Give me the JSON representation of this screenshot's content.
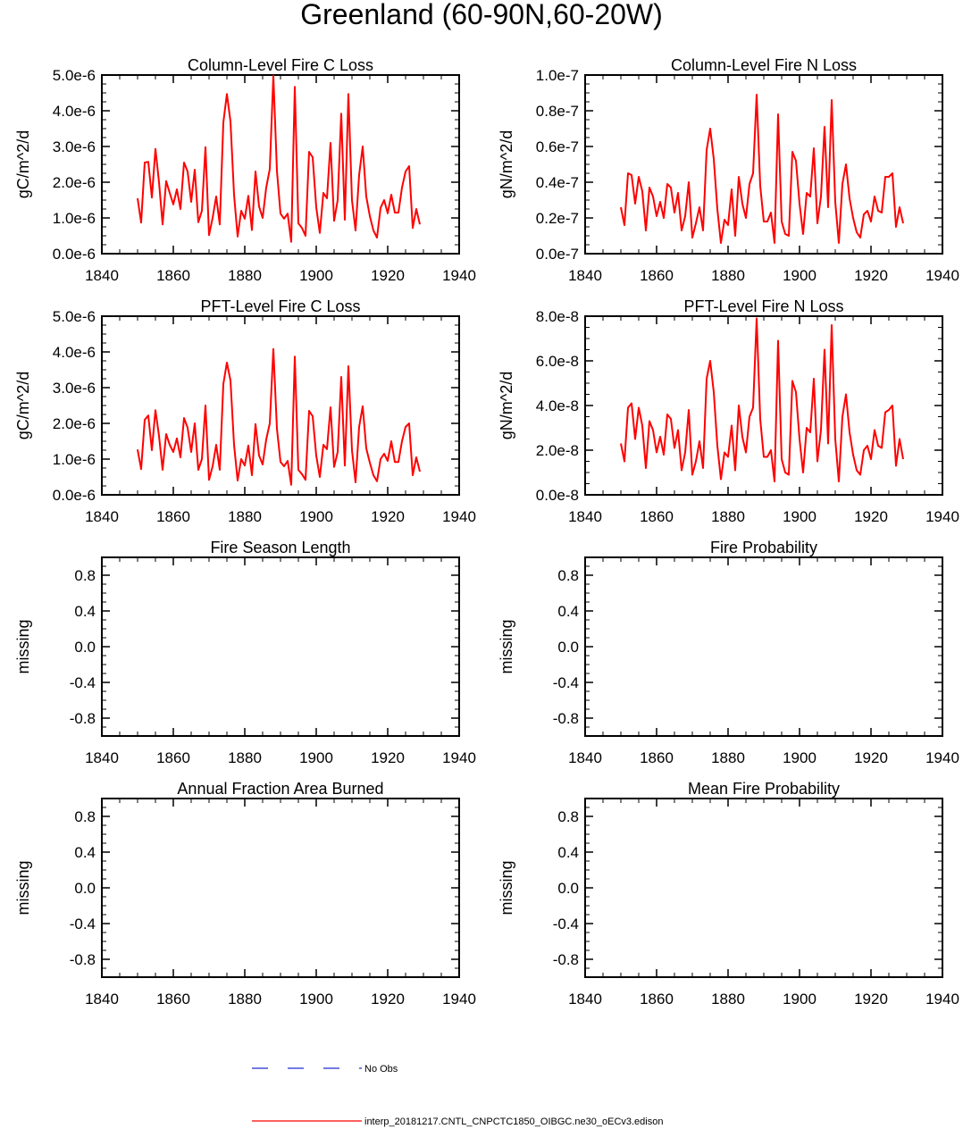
{
  "figure": {
    "title": "Greenland (60-90N,60-20W)"
  },
  "legend": {
    "entries": [
      {
        "label": "No Obs",
        "color": "#1f2ccf",
        "style": "dashed"
      },
      {
        "label": "interp_20181217.CNTL_CNPCTC1850_OIBGC.ne30_oECv3.edison",
        "color": "#ff0000",
        "style": "solid"
      }
    ]
  },
  "chart_data": [
    {
      "type": "line",
      "title": "Column-Level Fire C Loss",
      "ylabel": "gC/m^2/d",
      "xlim": [
        1840,
        1940
      ],
      "xticks": [
        1840,
        1860,
        1880,
        1900,
        1920,
        1940
      ],
      "ylim": [
        0,
        5e-06
      ],
      "yticks": [
        0,
        1e-06,
        2e-06,
        3e-06,
        4e-06,
        5e-06
      ],
      "ytick_labels": [
        "0.0e-6",
        "1.0e-6",
        "2.0e-6",
        "3.0e-6",
        "4.0e-6",
        "5.0e-6"
      ],
      "series": [
        {
          "name": "interp_20181217.CNTL_CNPCTC1850_OIBGC.ne30_oECv3.edison",
          "color": "#ff0000",
          "x_start": 1850,
          "values": [
            1.55e-06,
            8.7e-07,
            2.55e-06,
            2.57e-06,
            1.57e-06,
            2.93e-06,
            2e-06,
            8.2e-07,
            2.03e-06,
            1.7e-06,
            1.38e-06,
            1.8e-06,
            1.25e-06,
            2.55e-06,
            2.3e-06,
            1.45e-06,
            2.35e-06,
            8.8e-07,
            1.2e-06,
            2.98e-06,
            5.2e-07,
            1e-06,
            1.6e-06,
            8.2e-07,
            3.67e-06,
            4.47e-06,
            3.7e-06,
            1.65e-06,
            4.8e-07,
            1.2e-06,
            9.8e-07,
            1.62e-06,
            6.6e-07,
            2.3e-06,
            1.32e-06,
            1e-06,
            1.85e-06,
            2.37e-06,
            4.98e-06,
            2.32e-06,
            1.12e-06,
            9.8e-07,
            1.12e-06,
            3.3e-07,
            4.67e-06,
            8.5e-07,
            7.2e-07,
            5e-07,
            2.85e-06,
            2.7e-06,
            1.3e-06,
            5.8e-07,
            1.7e-06,
            1.55e-06,
            3.1e-06,
            9.2e-07,
            1.5e-06,
            3.92e-06,
            9.5e-07,
            4.47e-06,
            1.5e-06,
            6.5e-07,
            2.2e-06,
            3e-06,
            1.6e-06,
            1.05e-06,
            6.5e-07,
            4.5e-07,
            1.28e-06,
            1.5e-06,
            1.13e-06,
            1.65e-06,
            1.15e-06,
            1.15e-06,
            1.85e-06,
            2.3e-06,
            2.45e-06,
            7.2e-07,
            1.25e-06,
            8.2e-07
          ]
        }
      ]
    },
    {
      "type": "line",
      "title": "Column-Level Fire N Loss",
      "ylabel": "gN/m^2/d",
      "xlim": [
        1840,
        1940
      ],
      "xticks": [
        1840,
        1860,
        1880,
        1900,
        1920,
        1940
      ],
      "ylim": [
        0,
        1e-07
      ],
      "yticks": [
        0,
        2e-08,
        4e-08,
        6e-08,
        8e-08,
        1e-07
      ],
      "ytick_labels": [
        "0.0e-7",
        "0.2e-7",
        "0.4e-7",
        "0.6e-7",
        "0.8e-7",
        "1.0e-7"
      ],
      "series": [
        {
          "name": "interp_20181217.CNTL_CNPCTC1850_OIBGC.ne30_oECv3.edison",
          "color": "#ff0000",
          "x_start": 1850,
          "values": [
            2.6e-08,
            1.6e-08,
            4.5e-08,
            4.4e-08,
            2.8e-08,
            4.3e-08,
            3.5e-08,
            1.3e-08,
            3.7e-08,
            3.2e-08,
            2.1e-08,
            2.9e-08,
            2e-08,
            3.9e-08,
            3.7e-08,
            2.3e-08,
            3.4e-08,
            1.3e-08,
            2.1e-08,
            4e-08,
            9e-09,
            1.7e-08,
            2.6e-08,
            1.3e-08,
            5.8e-08,
            7e-08,
            5.3e-08,
            2.5e-08,
            6e-09,
            1.9e-08,
            1.6e-08,
            3.6e-08,
            1e-08,
            4.3e-08,
            2.8e-08,
            2e-08,
            3.9e-08,
            4.5e-08,
            8.9e-08,
            3.8e-08,
            1.8e-08,
            1.8e-08,
            2.3e-08,
            6e-09,
            7.8e-08,
            1.8e-08,
            1.1e-08,
            1e-08,
            5.7e-08,
            5.2e-08,
            2.8e-08,
            1.1e-08,
            3.4e-08,
            3.2e-08,
            5.9e-08,
            1.7e-08,
            3.2e-08,
            7.1e-08,
            2.6e-08,
            8.6e-08,
            2.9e-08,
            6e-09,
            3.9e-08,
            5e-08,
            3.1e-08,
            2e-08,
            1.2e-08,
            9e-09,
            2.2e-08,
            2.4e-08,
            1.8e-08,
            3.2e-08,
            2.4e-08,
            2.3e-08,
            4.3e-08,
            4.3e-08,
            4.5e-08,
            1.5e-08,
            2.6e-08,
            1.7e-08
          ]
        }
      ]
    },
    {
      "type": "line",
      "title": "PFT-Level Fire C Loss",
      "ylabel": "gC/m^2/d",
      "xlim": [
        1840,
        1940
      ],
      "xticks": [
        1840,
        1860,
        1880,
        1900,
        1920,
        1940
      ],
      "ylim": [
        0,
        5e-06
      ],
      "yticks": [
        0,
        1e-06,
        2e-06,
        3e-06,
        4e-06,
        5e-06
      ],
      "ytick_labels": [
        "0.0e-6",
        "1.0e-6",
        "2.0e-6",
        "3.0e-6",
        "4.0e-6",
        "5.0e-6"
      ],
      "series": [
        {
          "name": "interp_20181217.CNTL_CNPCTC1850_OIBGC.ne30_oECv3.edison",
          "color": "#ff0000",
          "x_start": 1850,
          "values": [
            1.27e-06,
            7.2e-07,
            2.1e-06,
            2.22e-06,
            1.25e-06,
            2.37e-06,
            1.65e-06,
            7e-07,
            1.7e-06,
            1.4e-06,
            1.2e-06,
            1.58e-06,
            1.05e-06,
            2.15e-06,
            1.88e-06,
            1.2e-06,
            2e-06,
            7e-07,
            1e-06,
            2.5e-06,
            4.2e-07,
            8e-07,
            1.4e-06,
            7e-07,
            3.1e-06,
            3.7e-06,
            3.2e-06,
            1.4e-06,
            4e-07,
            1e-06,
            8.2e-07,
            1.38e-06,
            5.5e-07,
            1.98e-06,
            1.1e-06,
            8.5e-07,
            1.55e-06,
            2e-06,
            4.08e-06,
            1.85e-06,
            9.2e-07,
            8e-07,
            9.5e-07,
            2.8e-07,
            3.87e-06,
            7e-07,
            5.8e-07,
            4.2e-07,
            2.35e-06,
            2.2e-06,
            1.1e-06,
            5e-07,
            1.4e-06,
            1.28e-06,
            2.45e-06,
            7.8e-07,
            1.2e-06,
            3.3e-06,
            8.2e-07,
            3.6e-06,
            1.25e-06,
            3.5e-07,
            1.9e-06,
            2.48e-06,
            1.3e-06,
            9e-07,
            5.5e-07,
            3.8e-07,
            1e-06,
            1.15e-06,
            9.5e-07,
            1.5e-06,
            9.2e-07,
            9.2e-07,
            1.5e-06,
            1.9e-06,
            2e-06,
            5.5e-07,
            1.05e-06,
            6.5e-07
          ]
        }
      ]
    },
    {
      "type": "line",
      "title": "PFT-Level Fire N Loss",
      "ylabel": "gN/m^2/d",
      "xlim": [
        1840,
        1940
      ],
      "xticks": [
        1840,
        1860,
        1880,
        1900,
        1920,
        1940
      ],
      "ylim": [
        0,
        8e-08
      ],
      "yticks": [
        0,
        2e-08,
        4e-08,
        6e-08,
        8e-08
      ],
      "ytick_labels": [
        "0.0e-8",
        "2.0e-8",
        "4.0e-8",
        "6.0e-8",
        "8.0e-8"
      ],
      "series": [
        {
          "name": "interp_20181217.CNTL_CNPCTC1850_OIBGC.ne30_oECv3.edison",
          "color": "#ff0000",
          "x_start": 1850,
          "values": [
            2.3e-08,
            1.5e-08,
            3.9e-08,
            4.1e-08,
            2.5e-08,
            3.9e-08,
            3.1e-08,
            1.2e-08,
            3.3e-08,
            2.9e-08,
            1.9e-08,
            2.6e-08,
            1.8e-08,
            3.6e-08,
            3.4e-08,
            2.1e-08,
            2.9e-08,
            1.1e-08,
            1.9e-08,
            3.8e-08,
            9e-09,
            1.5e-08,
            2.4e-08,
            1.2e-08,
            5.2e-08,
            6e-08,
            4.6e-08,
            2.2e-08,
            7e-09,
            1.9e-08,
            1.7e-08,
            3.1e-08,
            1.1e-08,
            4e-08,
            2.6e-08,
            1.9e-08,
            3.5e-08,
            3.9e-08,
            7.9e-08,
            3.4e-08,
            1.7e-08,
            1.7e-08,
            2e-08,
            6e-09,
            6.9e-08,
            1.6e-08,
            1e-08,
            9e-09,
            5.1e-08,
            4.6e-08,
            2.5e-08,
            1e-08,
            3e-08,
            2.8e-08,
            5.2e-08,
            1.5e-08,
            2.9e-08,
            6.5e-08,
            2.3e-08,
            7.6e-08,
            2.5e-08,
            6e-09,
            3.5e-08,
            4.5e-08,
            2.8e-08,
            1.8e-08,
            1.1e-08,
            9e-09,
            2e-08,
            2.2e-08,
            1.6e-08,
            2.9e-08,
            2.2e-08,
            2.1e-08,
            3.7e-08,
            3.8e-08,
            4e-08,
            1.3e-08,
            2.5e-08,
            1.6e-08
          ]
        }
      ]
    },
    {
      "type": "line",
      "title": "Fire Season Length",
      "ylabel": "missing",
      "xlim": [
        1840,
        1940
      ],
      "xticks": [
        1840,
        1860,
        1880,
        1900,
        1920,
        1940
      ],
      "ylim": [
        -1.0,
        1.0
      ],
      "yticks": [
        -0.8,
        -0.4,
        0.0,
        0.4,
        0.8
      ],
      "ytick_labels": [
        "-0.8",
        "-0.4",
        "0.0",
        "0.4",
        "0.8"
      ],
      "series": []
    },
    {
      "type": "line",
      "title": "Fire Probability",
      "ylabel": "missing",
      "xlim": [
        1840,
        1940
      ],
      "xticks": [
        1840,
        1860,
        1880,
        1900,
        1920,
        1940
      ],
      "ylim": [
        -1.0,
        1.0
      ],
      "yticks": [
        -0.8,
        -0.4,
        0.0,
        0.4,
        0.8
      ],
      "ytick_labels": [
        "-0.8",
        "-0.4",
        "0.0",
        "0.4",
        "0.8"
      ],
      "series": []
    },
    {
      "type": "line",
      "title": "Annual Fraction Area Burned",
      "ylabel": "missing",
      "xlim": [
        1840,
        1940
      ],
      "xticks": [
        1840,
        1860,
        1880,
        1900,
        1920,
        1940
      ],
      "ylim": [
        -1.0,
        1.0
      ],
      "yticks": [
        -0.8,
        -0.4,
        0.0,
        0.4,
        0.8
      ],
      "ytick_labels": [
        "-0.8",
        "-0.4",
        "0.0",
        "0.4",
        "0.8"
      ],
      "series": []
    },
    {
      "type": "line",
      "title": "Mean Fire Probability",
      "ylabel": "missing",
      "xlim": [
        1840,
        1940
      ],
      "xticks": [
        1840,
        1860,
        1880,
        1900,
        1920,
        1940
      ],
      "ylim": [
        -1.0,
        1.0
      ],
      "yticks": [
        -0.8,
        -0.4,
        0.0,
        0.4,
        0.8
      ],
      "ytick_labels": [
        "-0.8",
        "-0.4",
        "0.0",
        "0.4",
        "0.8"
      ],
      "series": []
    }
  ]
}
